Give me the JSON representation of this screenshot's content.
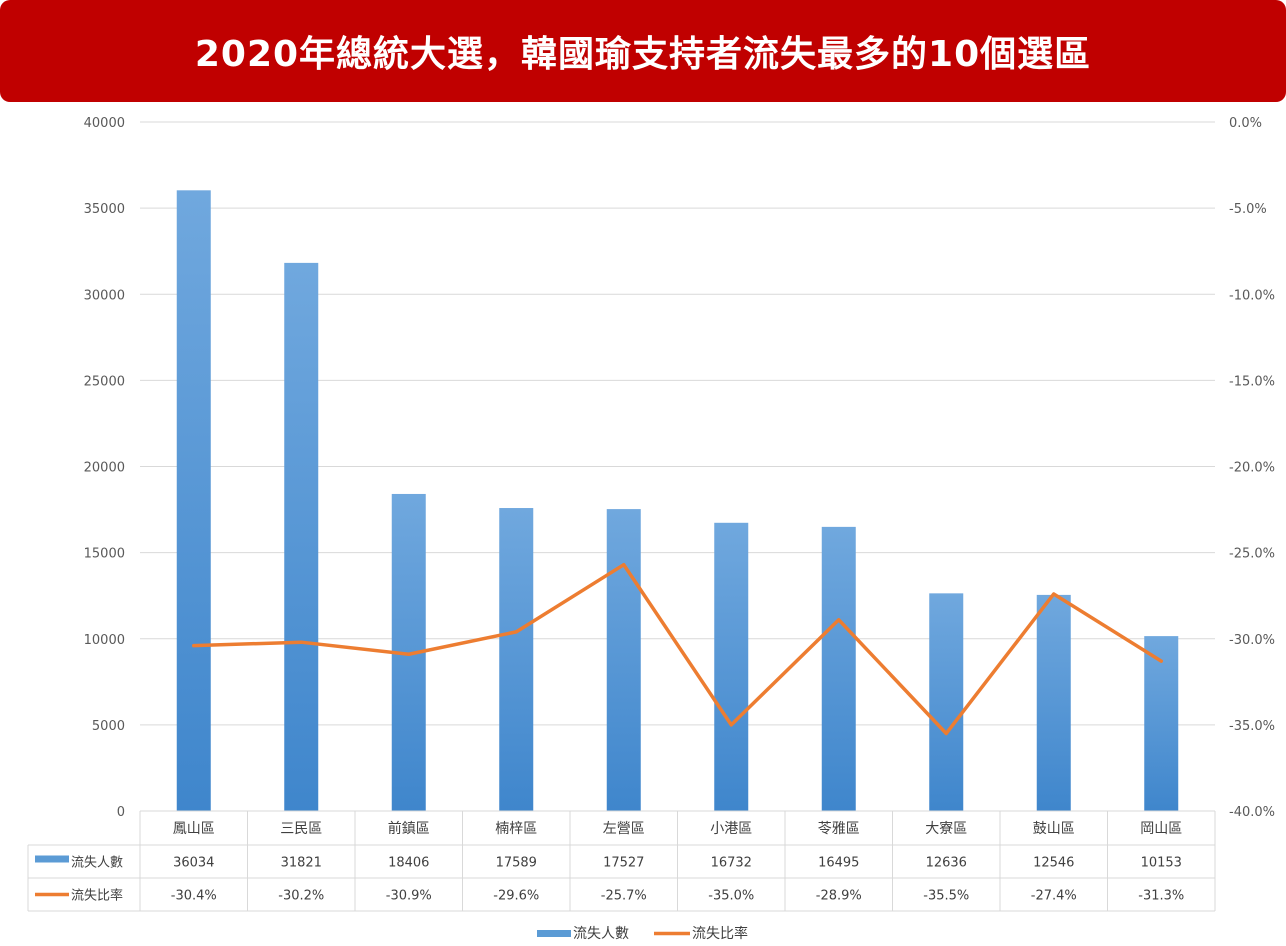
{
  "title": "2020年總統大選，韓國瑜支持者流失最多的10個選區",
  "colors": {
    "banner": "#c00000",
    "bar": "#5b9bd5",
    "line": "#ed7d31",
    "grid": "#d9d9d9"
  },
  "chart_data": {
    "type": "bar",
    "categories": [
      "鳳山區",
      "三民區",
      "前鎮區",
      "楠梓區",
      "左營區",
      "小港區",
      "苓雅區",
      "大寮區",
      "鼓山區",
      "岡山區"
    ],
    "series": [
      {
        "name": "流失人數",
        "type": "bar",
        "axis": "left",
        "values": [
          36034,
          31821,
          18406,
          17589,
          17527,
          16732,
          16495,
          12636,
          12546,
          10153
        ]
      },
      {
        "name": "流失比率",
        "type": "line",
        "axis": "right",
        "values": [
          -30.4,
          -30.2,
          -30.9,
          -29.6,
          -25.7,
          -35.0,
          -28.9,
          -35.5,
          -27.4,
          -31.3
        ]
      }
    ],
    "left_axis": {
      "ylim": [
        0,
        40000
      ],
      "ticks": [
        "40000",
        "35000",
        "30000",
        "25000",
        "20000",
        "15000",
        "10000",
        "5000",
        "0"
      ]
    },
    "right_axis": {
      "ylim": [
        -40,
        0
      ],
      "ticks": [
        "0.0%",
        "-5.0%",
        "-10.0%",
        "-15.0%",
        "-20.0%",
        "-25.0%",
        "-30.0%",
        "-35.0%",
        "-40.0%"
      ]
    },
    "table_rows": [
      {
        "label": "流失人數",
        "cells": [
          "36034",
          "31821",
          "18406",
          "17589",
          "17527",
          "16732",
          "16495",
          "12636",
          "12546",
          "10153"
        ]
      },
      {
        "label": "流失比率",
        "cells": [
          "-30.4%",
          "-30.2%",
          "-30.9%",
          "-29.6%",
          "-25.7%",
          "-35.0%",
          "-28.9%",
          "-35.5%",
          "-27.4%",
          "-31.3%"
        ]
      }
    ],
    "legend": [
      "流失人數",
      "流失比率"
    ],
    "legend_position": "bottom",
    "grid": true
  }
}
